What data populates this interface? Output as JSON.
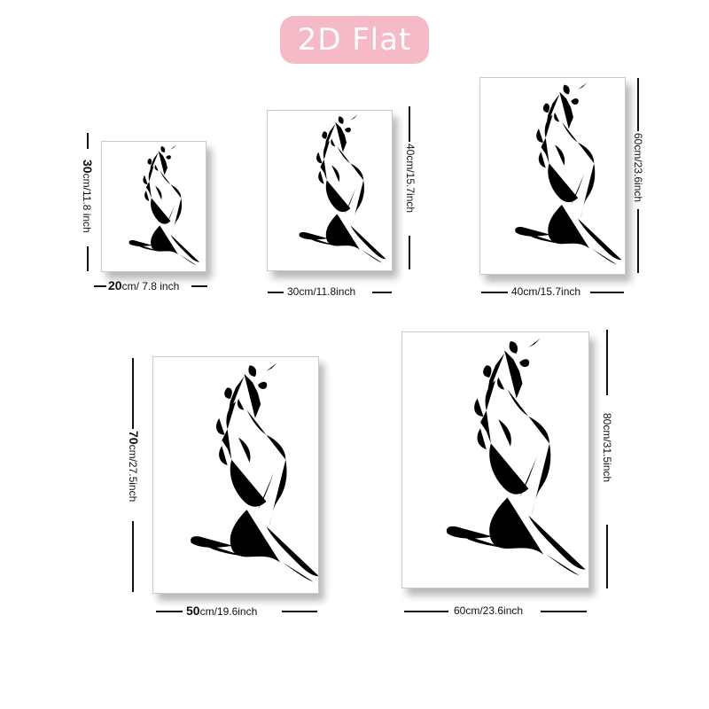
{
  "badge": {
    "label": "2D Flat"
  },
  "frames": [
    {
      "id": "20x30",
      "height": {
        "value": "30",
        "unit": "cm/11.8 inch"
      },
      "width": {
        "value": "20",
        "unit": "cm/ 7.8 inch"
      }
    },
    {
      "id": "30x40",
      "height": {
        "text": "40cm/15.7inch"
      },
      "width": {
        "text": "30cm/11.8inch"
      }
    },
    {
      "id": "40x60",
      "height": {
        "text": "60cm/23.6inch"
      },
      "width": {
        "text": "40cm/15.7inch"
      }
    },
    {
      "id": "50x70",
      "height": {
        "value": "70",
        "unit": "cm/27.5inch"
      },
      "width": {
        "value": "50",
        "unit": "cm/19.6inch"
      }
    },
    {
      "id": "60x80",
      "height": {
        "text": "80cm/31.5inch"
      },
      "width": {
        "text": "60cm/23.6inch"
      }
    }
  ]
}
